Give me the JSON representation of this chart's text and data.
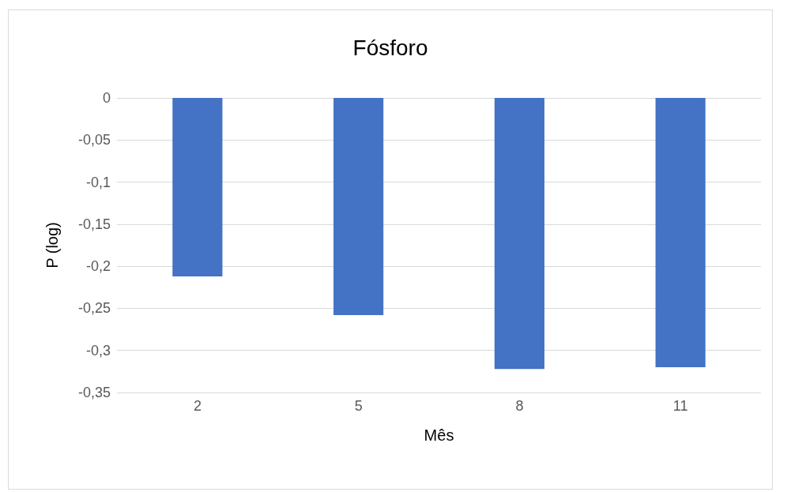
{
  "chart_data": {
    "type": "bar",
    "title": "Fósforo",
    "xlabel": "Mês",
    "ylabel": "P (log)",
    "categories": [
      "2",
      "5",
      "8",
      "11"
    ],
    "values": [
      -0.212,
      -0.258,
      -0.322,
      -0.32
    ],
    "color": "#4472c4",
    "ylim": [
      -0.35,
      0
    ],
    "yticks": [
      0,
      {
        "value": -0.05,
        "label": "-0,05"
      },
      {
        "value": -0.1,
        "label": "-0,1"
      },
      {
        "value": -0.15,
        "label": "-0,15"
      },
      {
        "value": -0.2,
        "label": "-0,2"
      },
      {
        "value": -0.25,
        "label": "-0,25"
      },
      {
        "value": -0.3,
        "label": "-0,3"
      },
      {
        "value": -0.35,
        "label": "-0,35"
      }
    ],
    "grid": "y"
  }
}
